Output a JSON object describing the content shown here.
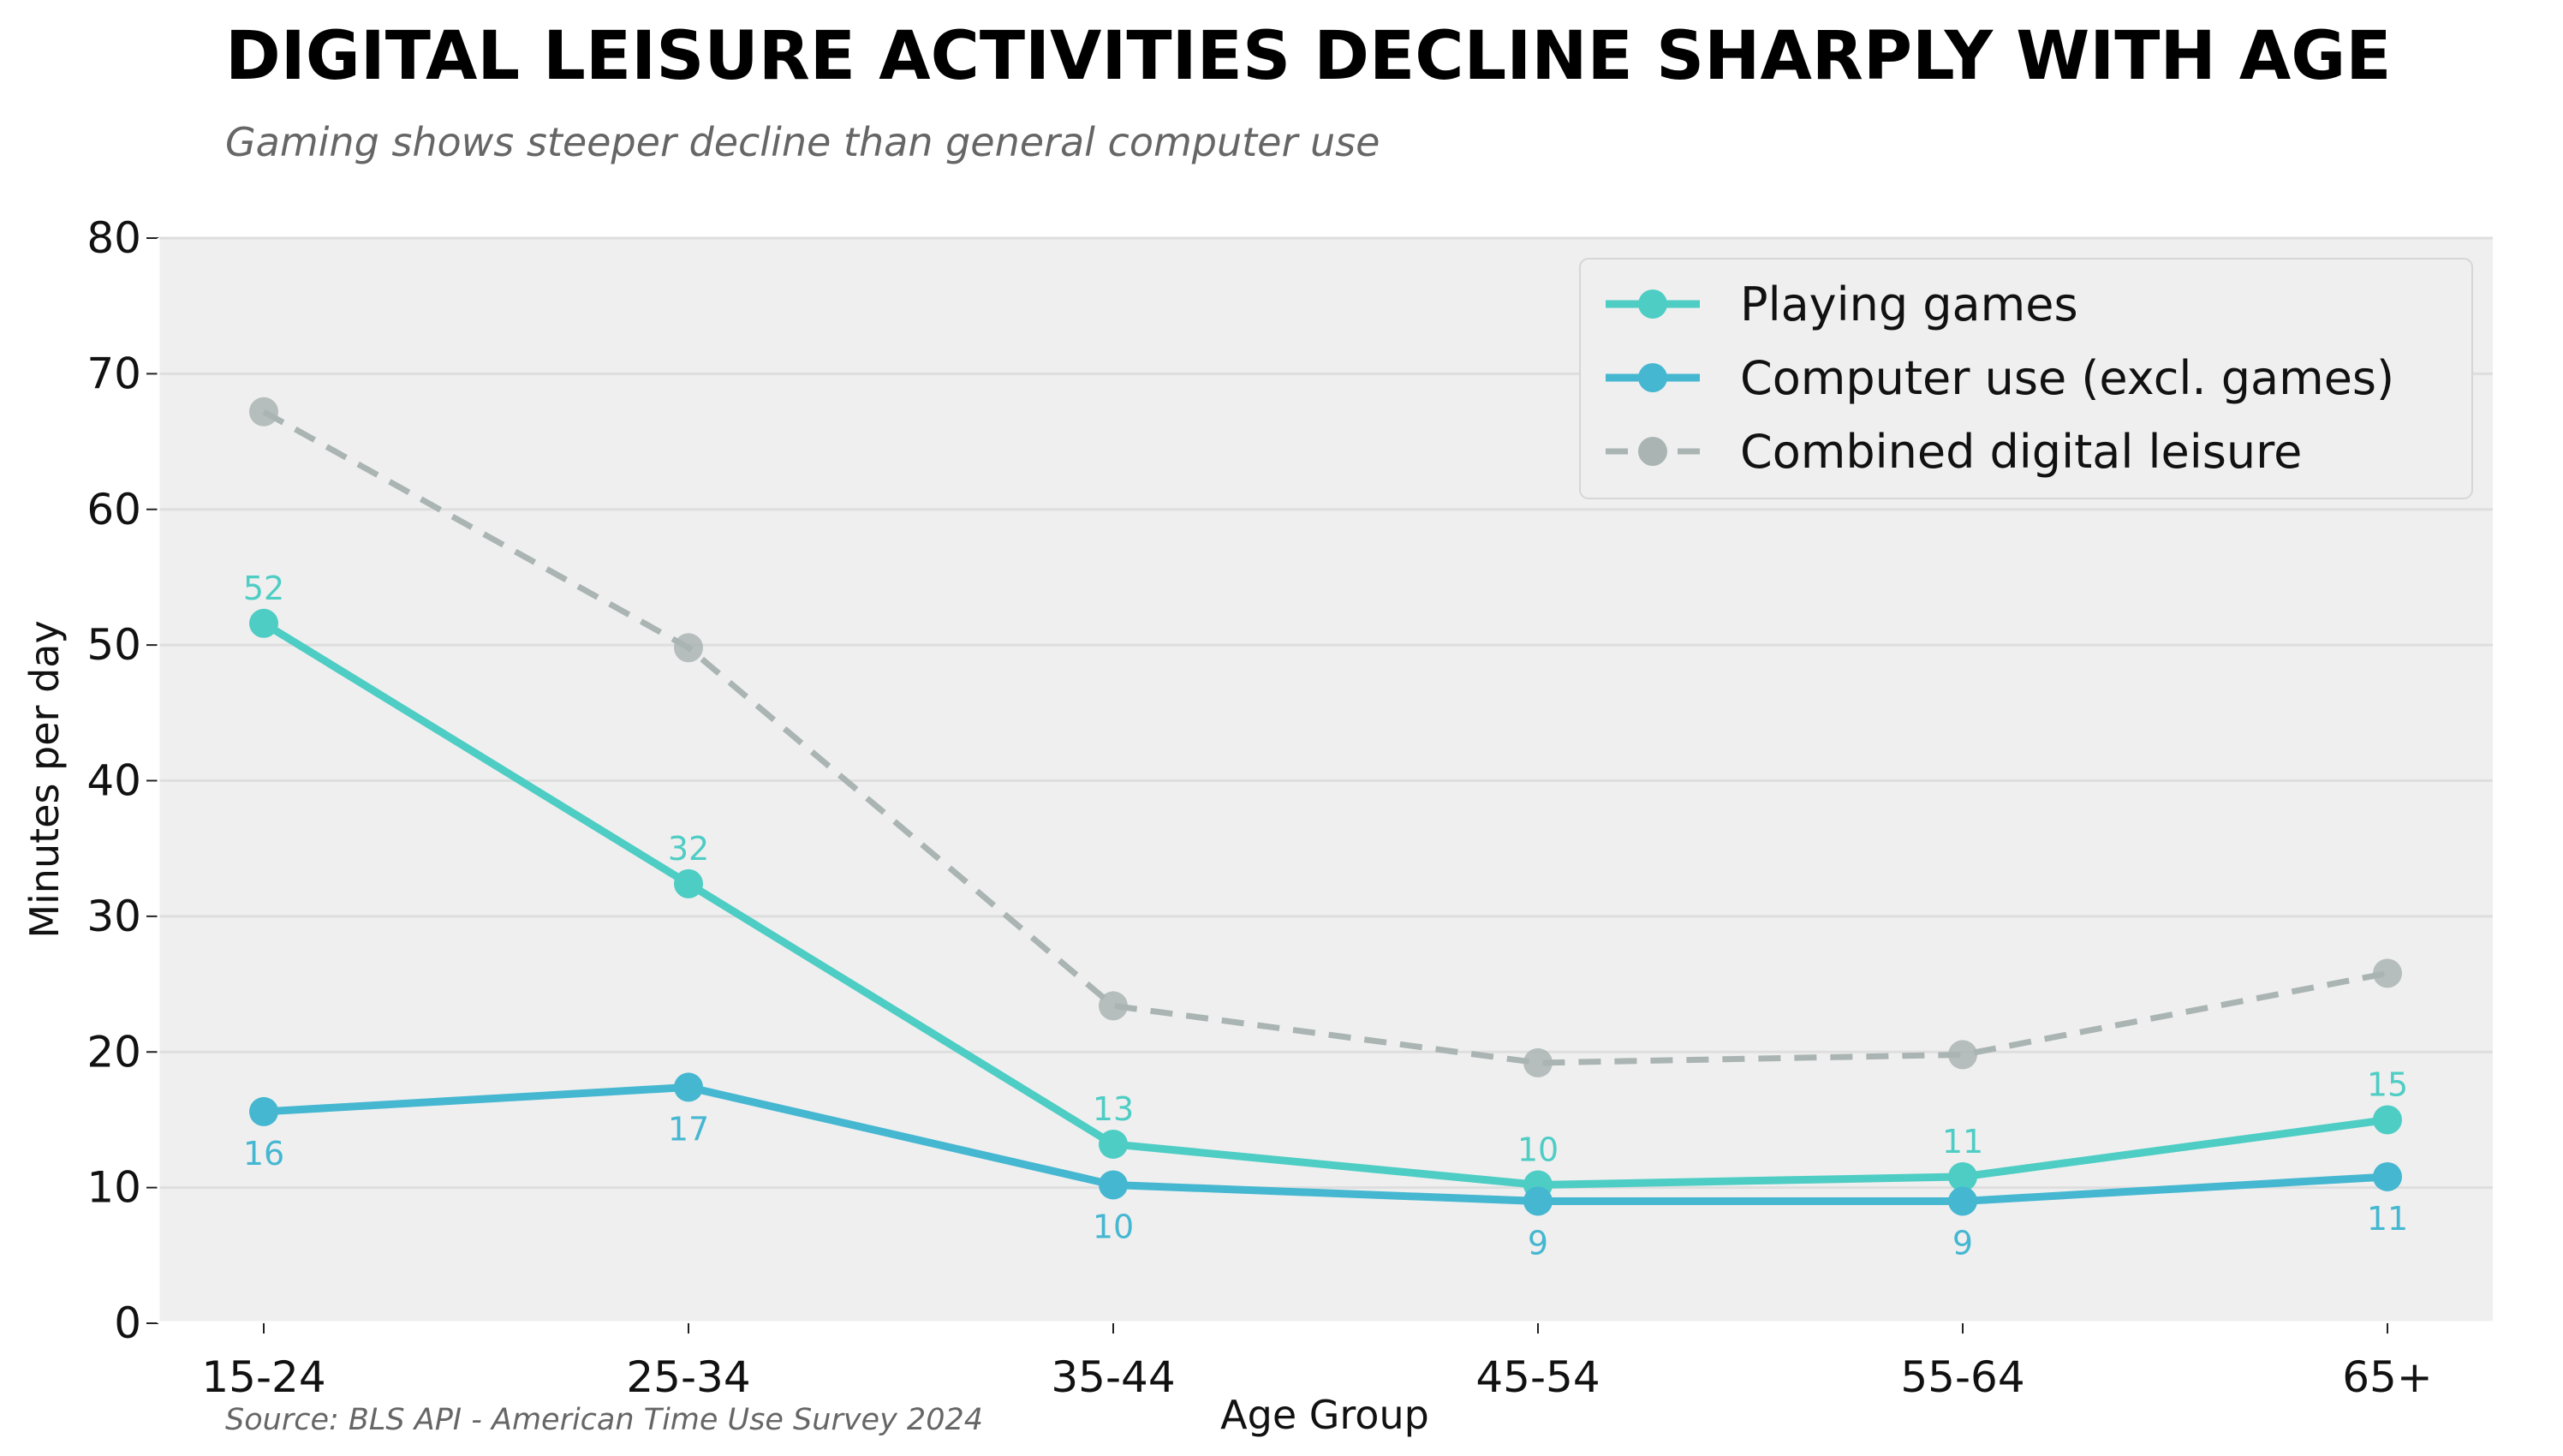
{
  "chart_data": {
    "type": "line",
    "title": "DIGITAL LEISURE ACTIVITIES DECLINE SHARPLY WITH AGE",
    "subtitle": "Gaming shows steeper decline than general computer use",
    "xlabel": "Age Group",
    "ylabel": "Minutes per day",
    "source": "Source: BLS API - American Time Use Survey 2024",
    "categories": [
      "15-24",
      "25-34",
      "35-44",
      "45-54",
      "55-64",
      "65+"
    ],
    "ylim": [
      0,
      80
    ],
    "yticks": [
      0,
      10,
      20,
      30,
      40,
      50,
      60,
      70,
      80
    ],
    "grid": "horizontal",
    "legend_position": "top-right",
    "series": [
      {
        "name": "Playing games",
        "values": [
          51.6,
          32.4,
          13.2,
          10.2,
          10.8,
          15.0
        ],
        "labels": [
          "52",
          "32",
          "13",
          "10",
          "11",
          "15"
        ],
        "label_position": "above",
        "color": "#4ECDC4",
        "style": "solid"
      },
      {
        "name": "Computer use (excl. games)",
        "values": [
          15.6,
          17.4,
          10.2,
          9.0,
          9.0,
          10.8
        ],
        "labels": [
          "16",
          "17",
          "10",
          "9",
          "9",
          "11"
        ],
        "label_position": "below",
        "color": "#45B7D1",
        "style": "solid"
      },
      {
        "name": "Combined digital leisure",
        "values": [
          67.2,
          49.8,
          23.4,
          19.2,
          19.8,
          25.8
        ],
        "color": "#AAB5B3",
        "style": "dashed"
      }
    ]
  }
}
